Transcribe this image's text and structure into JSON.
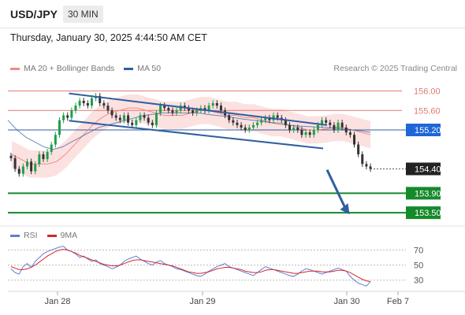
{
  "header": {
    "symbol": "USD/JPY",
    "timeframe": "30 MIN",
    "timestamp": "Thursday, January 30, 2025 4:44:50 AM CET"
  },
  "legend": {
    "items": [
      {
        "label": "MA 20 + Bollinger Bands",
        "color": "#f28b82"
      },
      {
        "label": "MA 50",
        "color": "#2f5fa0"
      }
    ],
    "credit": "Research © 2025 Trading Central"
  },
  "rsi_legend": {
    "items": [
      {
        "label": "RSI",
        "color": "#5b7fd6"
      },
      {
        "label": "9MA",
        "color": "#d62728"
      }
    ]
  },
  "colors": {
    "up": "#1e9e4a",
    "down": "#333333",
    "channel": "#2f5fa0",
    "resistance": "#e07a73",
    "support": "#158a2a",
    "current_price": "#1f3a8a",
    "pivot": "#1e66d9"
  },
  "chart_data": {
    "type": "candlestick",
    "title": "USD/JPY",
    "ylim": [
      153.34,
      156.3
    ],
    "x_ticks": [
      "Jan 28",
      "Jan 29",
      "Jan 30",
      "Feb 7"
    ],
    "y_ticks": [
      "156.00",
      "155.60",
      "155.20",
      "154.40",
      "153.90",
      "153.50"
    ],
    "price_levels": [
      {
        "value": 156.0,
        "label": "156.00",
        "type": "resistance"
      },
      {
        "value": 155.6,
        "label": "155.60",
        "type": "resistance"
      },
      {
        "value": 155.2,
        "label": "155.20",
        "type": "pivot"
      },
      {
        "value": 154.4,
        "label": "154.40",
        "type": "current"
      },
      {
        "value": 153.9,
        "label": "153.90",
        "type": "support"
      },
      {
        "value": 153.5,
        "label": "153.50",
        "type": "support"
      }
    ],
    "channel": {
      "upper": [
        [
          0.155,
          155.95
        ],
        [
          0.81,
          155.3
        ]
      ],
      "lower": [
        [
          0.155,
          155.39
        ],
        [
          0.8,
          154.82
        ]
      ]
    },
    "forecast_arrow": {
      "from": [
        0.81,
        154.38
      ],
      "to": [
        0.865,
        153.5
      ]
    },
    "closes": [
      154.62,
      154.4,
      154.3,
      154.45,
      154.55,
      154.35,
      154.5,
      154.7,
      154.6,
      154.75,
      154.9,
      155.1,
      155.4,
      155.5,
      155.45,
      155.6,
      155.7,
      155.8,
      155.75,
      155.7,
      155.85,
      155.9,
      155.75,
      155.7,
      155.6,
      155.5,
      155.45,
      155.4,
      155.5,
      155.35,
      155.3,
      155.4,
      155.5,
      155.45,
      155.35,
      155.3,
      155.55,
      155.7,
      155.65,
      155.6,
      155.55,
      155.6,
      155.7,
      155.65,
      155.6,
      155.55,
      155.6,
      155.65,
      155.6,
      155.7,
      155.75,
      155.7,
      155.6,
      155.5,
      155.4,
      155.35,
      155.3,
      155.25,
      155.2,
      155.25,
      155.3,
      155.35,
      155.4,
      155.45,
      155.4,
      155.5,
      155.45,
      155.4,
      155.3,
      155.2,
      155.25,
      155.2,
      155.1,
      155.15,
      155.1,
      155.2,
      155.3,
      155.4,
      155.35,
      155.3,
      155.2,
      155.35,
      155.25,
      155.15,
      155.1,
      154.9,
      154.7,
      154.5,
      154.45,
      154.4
    ],
    "ma20": [
      154.7,
      154.6,
      154.5,
      154.5,
      154.5,
      154.55,
      154.7,
      154.9,
      155.1,
      155.3,
      155.45,
      155.55,
      155.6,
      155.65,
      155.65,
      155.6,
      155.55,
      155.5,
      155.5,
      155.5,
      155.55,
      155.6,
      155.6,
      155.55,
      155.5,
      155.5,
      155.45,
      155.45,
      155.4,
      155.35,
      155.35,
      155.3,
      155.25,
      155.2,
      155.2,
      155.22,
      155.25,
      155.25,
      155.2,
      155.15,
      155.1
    ],
    "ma50": [
      155.4,
      155.2,
      155.05,
      154.95,
      154.85,
      154.8,
      154.85,
      154.95,
      155.05,
      155.15,
      155.25,
      155.3,
      155.35,
      155.4,
      155.45,
      155.5,
      155.52,
      155.55,
      155.55,
      155.55,
      155.55,
      155.55,
      155.52,
      155.5,
      155.48,
      155.45,
      155.42,
      155.4,
      155.38,
      155.35,
      155.32,
      155.3,
      155.28,
      155.27,
      155.26,
      155.25,
      155.24,
      155.22,
      155.2,
      155.18,
      155.15
    ],
    "rsi": {
      "ylim": [
        15,
        80
      ],
      "ticks": [
        70,
        50,
        30
      ],
      "values": [
        45,
        40,
        38,
        48,
        52,
        47,
        55,
        60,
        65,
        68,
        70,
        72,
        74,
        75,
        70,
        68,
        65,
        60,
        62,
        58,
        55,
        57,
        52,
        50,
        48,
        45,
        47,
        50,
        55,
        58,
        60,
        62,
        58,
        55,
        52,
        50,
        54,
        56,
        52,
        50,
        48,
        45,
        44,
        42,
        40,
        38,
        36,
        35,
        38,
        42,
        45,
        48,
        50,
        52,
        48,
        46,
        44,
        42,
        40,
        38,
        36,
        40,
        44,
        48,
        46,
        44,
        42,
        40,
        38,
        36,
        35,
        38,
        42,
        45,
        44,
        42,
        40,
        38,
        40,
        42,
        44,
        46,
        44,
        42,
        35,
        30,
        26,
        24,
        22,
        28
      ],
      "ma9": [
        48,
        46,
        44,
        44,
        45,
        47,
        50,
        54,
        58,
        62,
        65,
        68,
        70,
        71,
        70,
        68,
        66,
        63,
        61,
        59,
        57,
        55,
        53,
        51,
        50,
        49,
        49,
        50,
        52,
        54,
        56,
        57,
        57,
        56,
        55,
        54,
        53,
        52,
        51,
        50,
        49,
        47,
        45,
        43,
        41,
        40,
        39,
        39,
        40,
        41,
        43,
        45,
        46,
        47,
        47,
        46,
        45,
        44,
        42,
        41,
        40,
        40,
        41,
        43,
        44,
        44,
        43,
        42,
        41,
        40,
        39,
        39,
        40,
        41,
        42,
        42,
        42,
        41,
        41,
        41,
        42,
        43,
        43,
        42,
        40,
        37,
        34,
        31,
        29,
        28
      ]
    }
  }
}
